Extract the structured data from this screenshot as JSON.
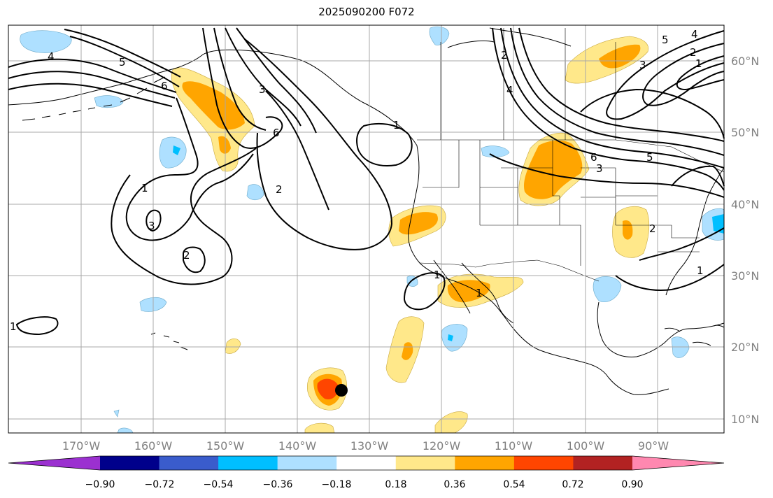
{
  "title": "2025090200 F072",
  "lon_labels": [
    "170°W",
    "160°W",
    "150°W",
    "140°W",
    "130°W",
    "120°W",
    "110°W",
    "100°W",
    "90°W"
  ],
  "lat_labels": [
    "60°N",
    "50°N",
    "40°N",
    "30°N",
    "20°N",
    "10°N"
  ],
  "colorbar": {
    "ticks": [
      "−0.90",
      "−0.72",
      "−0.54",
      "−0.36",
      "−0.18",
      "0.18",
      "0.36",
      "0.54",
      "0.72",
      "0.90"
    ],
    "colors": [
      "#9b30d0",
      "#00008b",
      "#3a5ccc",
      "#00bfff",
      "#aee0ff",
      "#ffffff",
      "#ffe88a",
      "#ffa500",
      "#ff4500",
      "#b22222",
      "#ff88b0"
    ]
  },
  "contour_labels": [
    "4",
    "5",
    "6",
    "3",
    "6",
    "2",
    "1",
    "3",
    "2",
    "1",
    "1",
    "1",
    "2",
    "4",
    "6",
    "5",
    "4",
    "3",
    "2",
    "1",
    "5",
    "3",
    "1",
    "1",
    "2"
  ],
  "marker": {
    "name": "storm-center",
    "color": "#000000"
  }
}
